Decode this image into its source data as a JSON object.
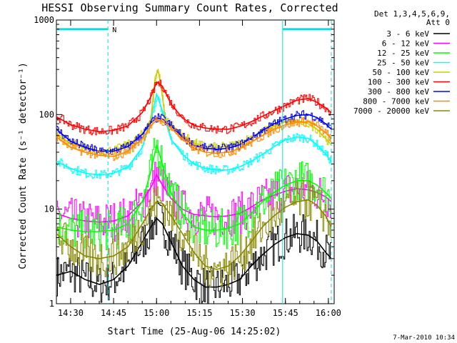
{
  "chart_data": {
    "type": "line",
    "title": "HESSI Observing Summary Count Rates, Corrected",
    "xlabel": "Start Time (25-Aug-06 14:25:02)",
    "ylabel": "Corrected Count Rate (s⁻¹ detector⁻¹)",
    "x_units": "minutes since 14:25:02",
    "xlim": [
      0,
      97
    ],
    "ylim": [
      1,
      1000
    ],
    "yscale": "log",
    "x_ticks": [
      {
        "t": 4.97,
        "label": "14:30"
      },
      {
        "t": 19.97,
        "label": "14:45"
      },
      {
        "t": 34.97,
        "label": "15:00"
      },
      {
        "t": 49.97,
        "label": "15:15"
      },
      {
        "t": 64.97,
        "label": "15:30"
      },
      {
        "t": 79.97,
        "label": "15:45"
      },
      {
        "t": 94.97,
        "label": "16:00"
      }
    ],
    "y_ticks": [
      {
        "v": 1,
        "label": "1"
      },
      {
        "v": 10,
        "label": "10"
      },
      {
        "v": 100,
        "label": "100"
      },
      {
        "v": 1000,
        "label": "1000"
      }
    ],
    "legend": {
      "header": [
        "Det 1,3,4,5,6,9,",
        "Att 0"
      ],
      "placement": "right"
    },
    "series": [
      {
        "name": "3 - 6 keV",
        "color": "#000000",
        "points": [
          [
            0,
            2
          ],
          [
            5,
            2.2
          ],
          [
            10,
            1.8
          ],
          [
            15,
            1.6
          ],
          [
            20,
            1.8
          ],
          [
            25,
            2.5
          ],
          [
            30,
            4.5
          ],
          [
            33,
            6.5
          ],
          [
            35,
            8
          ],
          [
            37,
            7
          ],
          [
            40,
            4.5
          ],
          [
            44,
            2.5
          ],
          [
            48,
            1.8
          ],
          [
            52,
            1.5
          ],
          [
            56,
            1.5
          ],
          [
            60,
            1.6
          ],
          [
            64,
            1.8
          ],
          [
            68,
            2.5
          ],
          [
            72,
            3.3
          ],
          [
            76,
            4.2
          ],
          [
            80,
            5
          ],
          [
            84,
            5.5
          ],
          [
            88,
            5.3
          ],
          [
            91,
            4.6
          ],
          [
            94,
            3.5
          ],
          [
            96,
            3
          ]
        ]
      },
      {
        "name": "6 - 12 keV",
        "color": "#ff00ff",
        "points": [
          [
            0,
            9
          ],
          [
            5,
            8
          ],
          [
            10,
            7.5
          ],
          [
            15,
            7.3
          ],
          [
            20,
            7.5
          ],
          [
            25,
            8.5
          ],
          [
            30,
            12
          ],
          [
            33,
            17
          ],
          [
            35,
            23
          ],
          [
            37,
            18
          ],
          [
            40,
            13
          ],
          [
            44,
            10
          ],
          [
            48,
            8.8
          ],
          [
            52,
            8.5
          ],
          [
            56,
            8.3
          ],
          [
            60,
            8.5
          ],
          [
            64,
            9
          ],
          [
            68,
            10.5
          ],
          [
            72,
            12.5
          ],
          [
            76,
            14
          ],
          [
            80,
            15.5
          ],
          [
            84,
            16.5
          ],
          [
            88,
            16
          ],
          [
            91,
            15
          ],
          [
            94,
            13.5
          ],
          [
            96,
            12
          ]
        ]
      },
      {
        "name": "12 - 25 keV",
        "color": "#00ff00",
        "points": [
          [
            0,
            6.5
          ],
          [
            5,
            6
          ],
          [
            10,
            5.8
          ],
          [
            15,
            5.8
          ],
          [
            20,
            6
          ],
          [
            25,
            7
          ],
          [
            30,
            12
          ],
          [
            33,
            25
          ],
          [
            35,
            48
          ],
          [
            37,
            30
          ],
          [
            40,
            15
          ],
          [
            44,
            9
          ],
          [
            48,
            6.5
          ],
          [
            52,
            6
          ],
          [
            56,
            6
          ],
          [
            60,
            6.3
          ],
          [
            64,
            7
          ],
          [
            68,
            9
          ],
          [
            72,
            12
          ],
          [
            76,
            15
          ],
          [
            80,
            18
          ],
          [
            84,
            20
          ],
          [
            88,
            20
          ],
          [
            91,
            18
          ],
          [
            94,
            15
          ],
          [
            96,
            13
          ]
        ]
      },
      {
        "name": "25 - 50 keV",
        "color": "#00ffff",
        "points": [
          [
            0,
            32
          ],
          [
            5,
            27
          ],
          [
            10,
            24
          ],
          [
            15,
            23
          ],
          [
            20,
            24
          ],
          [
            25,
            28
          ],
          [
            30,
            45
          ],
          [
            33,
            90
          ],
          [
            35,
            165
          ],
          [
            37,
            110
          ],
          [
            40,
            55
          ],
          [
            44,
            38
          ],
          [
            48,
            30
          ],
          [
            52,
            27
          ],
          [
            56,
            26
          ],
          [
            60,
            26
          ],
          [
            64,
            28
          ],
          [
            68,
            32
          ],
          [
            72,
            38
          ],
          [
            76,
            46
          ],
          [
            80,
            54
          ],
          [
            84,
            58
          ],
          [
            88,
            56
          ],
          [
            91,
            48
          ],
          [
            94,
            38
          ],
          [
            96,
            32
          ]
        ]
      },
      {
        "name": "50 - 100 keV",
        "color": "#cccc00",
        "points": [
          [
            0,
            60
          ],
          [
            5,
            50
          ],
          [
            10,
            44
          ],
          [
            15,
            41
          ],
          [
            20,
            42
          ],
          [
            25,
            48
          ],
          [
            30,
            62
          ],
          [
            33,
            90
          ],
          [
            34.5,
            250
          ],
          [
            35.5,
            295
          ],
          [
            36.5,
            200
          ],
          [
            38,
            92
          ],
          [
            40,
            78
          ],
          [
            44,
            60
          ],
          [
            48,
            50
          ],
          [
            52,
            46
          ],
          [
            56,
            45
          ],
          [
            60,
            46
          ],
          [
            64,
            50
          ],
          [
            68,
            58
          ],
          [
            72,
            66
          ],
          [
            76,
            76
          ],
          [
            80,
            84
          ],
          [
            84,
            86
          ],
          [
            88,
            80
          ],
          [
            91,
            70
          ],
          [
            94,
            56
          ],
          [
            96,
            48
          ]
        ]
      },
      {
        "name": "100 - 300 keV",
        "color": "#ff0000",
        "points": [
          [
            0,
            95
          ],
          [
            5,
            78
          ],
          [
            10,
            70
          ],
          [
            15,
            66
          ],
          [
            20,
            68
          ],
          [
            25,
            76
          ],
          [
            30,
            105
          ],
          [
            33,
            155
          ],
          [
            35,
            220
          ],
          [
            37,
            200
          ],
          [
            40,
            130
          ],
          [
            44,
            92
          ],
          [
            48,
            77
          ],
          [
            52,
            72
          ],
          [
            56,
            70
          ],
          [
            60,
            70
          ],
          [
            64,
            75
          ],
          [
            68,
            84
          ],
          [
            72,
            96
          ],
          [
            76,
            110
          ],
          [
            80,
            125
          ],
          [
            84,
            142
          ],
          [
            88,
            148
          ],
          [
            91,
            135
          ],
          [
            94,
            118
          ],
          [
            96,
            105
          ]
        ]
      },
      {
        "name": "300 - 800 keV",
        "color": "#0000ff",
        "points": [
          [
            0,
            70
          ],
          [
            5,
            52
          ],
          [
            10,
            45
          ],
          [
            15,
            41
          ],
          [
            20,
            41
          ],
          [
            25,
            46
          ],
          [
            30,
            62
          ],
          [
            33,
            82
          ],
          [
            35,
            92
          ],
          [
            37,
            90
          ],
          [
            40,
            76
          ],
          [
            44,
            58
          ],
          [
            48,
            47
          ],
          [
            52,
            44
          ],
          [
            56,
            43
          ],
          [
            60,
            44
          ],
          [
            64,
            48
          ],
          [
            68,
            56
          ],
          [
            72,
            68
          ],
          [
            76,
            80
          ],
          [
            80,
            90
          ],
          [
            84,
            98
          ],
          [
            88,
            100
          ],
          [
            91,
            93
          ],
          [
            94,
            80
          ],
          [
            96,
            70
          ]
        ]
      },
      {
        "name": "800 - 7000 keV",
        "color": "#ff8800",
        "points": [
          [
            0,
            58
          ],
          [
            5,
            45
          ],
          [
            10,
            40
          ],
          [
            15,
            37
          ],
          [
            20,
            36
          ],
          [
            25,
            41
          ],
          [
            30,
            56
          ],
          [
            33,
            76
          ],
          [
            35,
            88
          ],
          [
            37,
            85
          ],
          [
            40,
            72
          ],
          [
            44,
            55
          ],
          [
            48,
            44
          ],
          [
            52,
            40
          ],
          [
            56,
            39
          ],
          [
            60,
            40
          ],
          [
            64,
            44
          ],
          [
            68,
            51
          ],
          [
            72,
            60
          ],
          [
            76,
            70
          ],
          [
            80,
            78
          ],
          [
            84,
            83
          ],
          [
            88,
            84
          ],
          [
            91,
            76
          ],
          [
            94,
            64
          ],
          [
            96,
            56
          ]
        ]
      },
      {
        "name": "7000 - 20000 keV",
        "color": "#888800",
        "points": [
          [
            0,
            5.5
          ],
          [
            5,
            4
          ],
          [
            10,
            3.2
          ],
          [
            15,
            3
          ],
          [
            20,
            3.2
          ],
          [
            25,
            4
          ],
          [
            30,
            7
          ],
          [
            33,
            10
          ],
          [
            35,
            12
          ],
          [
            37,
            11.5
          ],
          [
            40,
            8.5
          ],
          [
            44,
            5.5
          ],
          [
            48,
            3.5
          ],
          [
            52,
            2.5
          ],
          [
            56,
            2.3
          ],
          [
            60,
            2.5
          ],
          [
            64,
            3.2
          ],
          [
            68,
            4.5
          ],
          [
            72,
            6.5
          ],
          [
            76,
            8.5
          ],
          [
            80,
            10.5
          ],
          [
            84,
            12
          ],
          [
            88,
            12.5
          ],
          [
            91,
            11
          ],
          [
            94,
            8.5
          ],
          [
            96,
            6.5
          ]
        ]
      }
    ],
    "annotations": {
      "flags": [
        {
          "x_start": 0,
          "x_end": 18,
          "y": 800,
          "label": "N",
          "label_x": 19.5
        },
        {
          "x_start": 79,
          "x_end": 96,
          "y": 800,
          "label": ""
        }
      ],
      "vlines_solid": [
        79
      ],
      "vlines_dashed": [
        18,
        96
      ]
    },
    "grid": false
  },
  "footer": {
    "timestamp": "7-Mar-2010 10:34"
  }
}
